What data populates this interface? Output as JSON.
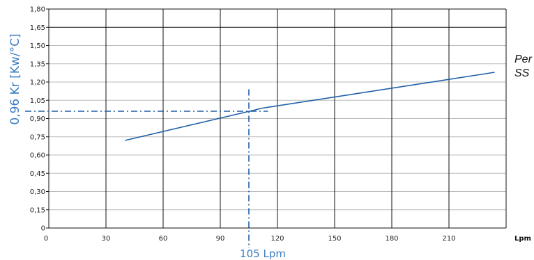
{
  "colors": {
    "line": "#1f5fa6",
    "marker": "#1f5fa6",
    "axis_label": "#3a7cc2",
    "grid": "#111111",
    "grid_light": "#bbbbbb"
  },
  "side_text": [
    "Per",
    "SS"
  ],
  "unit_label": "Lpm",
  "chart_data": {
    "type": "line",
    "xlabel": "",
    "ylabel": "0,96 Kr [Kw/°C]",
    "xlim": [
      0,
      240
    ],
    "ylim": [
      0,
      1.8
    ],
    "x_ticks": [
      0,
      30,
      60,
      90,
      120,
      150,
      180,
      210
    ],
    "x_tick_labels": [
      "0",
      "30",
      "60",
      "90",
      "120",
      "150",
      "180",
      "210"
    ],
    "y_ticks": [
      0,
      0.15,
      0.3,
      0.45,
      0.6,
      0.75,
      0.9,
      1.05,
      1.2,
      1.35,
      1.5,
      1.65,
      1.8
    ],
    "y_tick_labels": [
      "0",
      "0,15",
      "0,30",
      "0,45",
      "0,60",
      "0,75",
      "0,90",
      "1,05",
      "1,20",
      "1,35",
      "1,50",
      "1,65",
      "1,80"
    ],
    "grid": true,
    "series": [
      {
        "x": [
          40,
          104,
          112,
          234
        ],
        "y": [
          0.72,
          0.955,
          0.985,
          1.28
        ]
      }
    ],
    "annotation": {
      "x": 105,
      "y": 0.96,
      "x_label": "105 Lpm",
      "line_style": "dash-dot"
    }
  }
}
